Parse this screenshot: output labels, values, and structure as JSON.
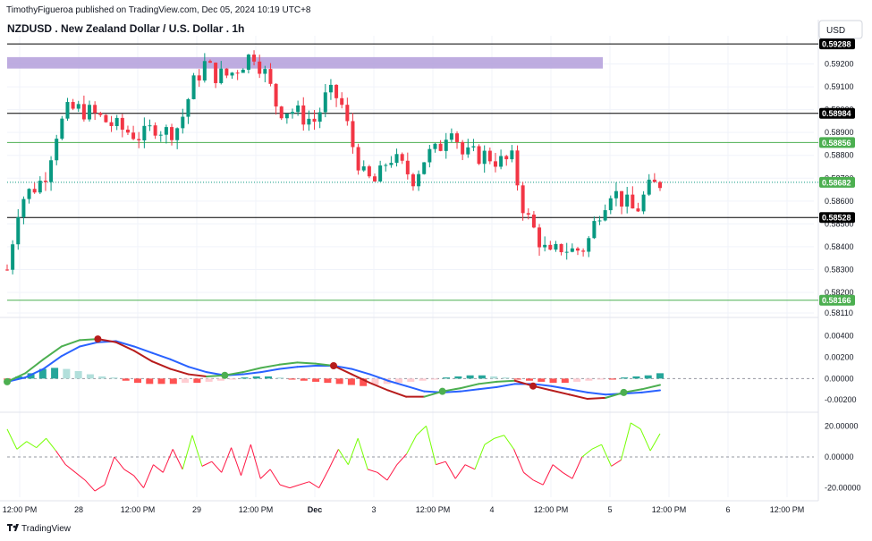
{
  "header": {
    "publisher": "TimothyFigueroa published on TradingView.com, Dec 05, 2024 10:19 UTC+8",
    "symbol_title": "NZDUSD . New Zealand Dollar / U.S. Dollar . 1h",
    "currency": "USD"
  },
  "footer": {
    "brand": "TradingView"
  },
  "colors": {
    "up": "#089981",
    "down": "#f23645",
    "grid": "#f0f3fa",
    "macd_fast": "#4caf50",
    "macd_slow": "#2962ff",
    "macd_slow_down": "#b71c1c",
    "hist_up_strong": "#26a69a",
    "hist_up_weak": "#b2dfdb",
    "hist_down_strong": "#ff5252",
    "hist_down_weak": "#ffcdd2",
    "osc_up": "#76ff03",
    "osc_down": "#ff1744",
    "zone": "#b39ddb",
    "hline_green": "#4caf50",
    "hline_black": "#000000"
  },
  "chart_data": {
    "type": "candlestick",
    "title": "NZDUSD . New Zealand Dollar / U.S. Dollar . 1h",
    "price_axis": {
      "ticks": [
        "0.59200",
        "0.59100",
        "0.59000",
        "0.58900",
        "0.58800",
        "0.58700",
        "0.58600",
        "0.58500",
        "0.58400",
        "0.58300",
        "0.58200",
        "0.58110"
      ],
      "ylim": [
        0.5811,
        0.593
      ]
    },
    "time_axis": {
      "ticks": [
        "12:00 PM",
        "28",
        "12:00 PM",
        "29",
        "12:00 PM",
        "Dec",
        "3",
        "12:00 PM",
        "4",
        "12:00 PM",
        "5",
        "12:00 PM",
        "6",
        "12:00 PM"
      ]
    },
    "price_labels": [
      {
        "text": "0.59288",
        "style": "black"
      },
      {
        "text": "0.58984",
        "style": "black"
      },
      {
        "text": "0.58856",
        "style": "green"
      },
      {
        "text": "0.58682",
        "style": "green"
      },
      {
        "text": "0.58528",
        "style": "black"
      },
      {
        "text": "0.58166",
        "style": "green"
      }
    ],
    "horizontal_lines": [
      {
        "price": 0.59288,
        "color": "black"
      },
      {
        "price": 0.58984,
        "color": "black"
      },
      {
        "price": 0.58856,
        "color": "green"
      },
      {
        "price": 0.58528,
        "color": "black"
      },
      {
        "price": 0.58166,
        "color": "green"
      }
    ],
    "last_price_line": 0.58682,
    "supply_zone": {
      "from": 0.5918,
      "to": 0.5923
    },
    "close_path": [
      0.583,
      0.586,
      0.5865,
      0.587,
      0.589,
      0.59,
      0.59,
      0.5898,
      0.5895,
      0.5892,
      0.589,
      0.5888,
      0.5893,
      0.589,
      0.5893,
      0.591,
      0.592,
      0.5915,
      0.5915,
      0.592,
      0.5925,
      0.5915,
      0.59,
      0.59,
      0.5897,
      0.5895,
      0.5907,
      0.5905,
      0.5885,
      0.587,
      0.5868,
      0.588,
      0.5875,
      0.587,
      0.588,
      0.5882,
      0.5895,
      0.588,
      0.588,
      0.588,
      0.5877,
      0.5878,
      0.5855,
      0.5845,
      0.5835,
      0.584,
      0.5838,
      0.584,
      0.5855,
      0.5865,
      0.586,
      0.5855,
      0.5865,
      0.5868
    ],
    "macd_panel": {
      "ticks": [
        "0.00400",
        "0.00200",
        "0.00000",
        "-0.00200"
      ],
      "ylim": [
        -0.0029,
        0.0053
      ],
      "fast": [
        -0.0003,
        0.0005,
        0.0018,
        0.003,
        0.0036,
        0.0037,
        0.0034,
        0.0026,
        0.0016,
        0.0009,
        0.0004,
        0.0002,
        0.0003,
        0.0006,
        0.001,
        0.0013,
        0.0015,
        0.0014,
        0.0012,
        0.0004,
        -0.0004,
        -0.0011,
        -0.0017,
        -0.0017,
        -0.0012,
        -0.0009,
        -0.0005,
        -0.0003,
        -0.0002,
        -0.0007,
        -0.0011,
        -0.0015,
        -0.0019,
        -0.0018,
        -0.0013,
        -0.001,
        -0.0006
      ],
      "slow": [
        -0.0003,
        0.0001,
        0.0009,
        0.0021,
        0.003,
        0.0034,
        0.0035,
        0.003,
        0.0024,
        0.0018,
        0.0011,
        0.0006,
        0.0003,
        0.0004,
        0.0006,
        0.0009,
        0.0011,
        0.0012,
        0.0012,
        0.0009,
        0.0004,
        -0.0002,
        -0.0007,
        -0.0012,
        -0.0013,
        -0.0012,
        -0.001,
        -0.0008,
        -0.0005,
        -0.0005,
        -0.0007,
        -0.001,
        -0.0013,
        -0.0015,
        -0.0014,
        -0.0013,
        -0.0011
      ],
      "cross_points": [
        {
          "i": 0,
          "kind": "up"
        },
        {
          "i": 5,
          "kind": "down"
        },
        {
          "i": 12,
          "kind": "up"
        },
        {
          "i": 18,
          "kind": "down"
        },
        {
          "i": 24,
          "kind": "up"
        },
        {
          "i": 29,
          "kind": "down"
        },
        {
          "i": 34,
          "kind": "up"
        }
      ],
      "histogram": [
        -0.0001,
        0.0002,
        0.0005,
        0.0009,
        0.001,
        0.0009,
        0.0007,
        0.0004,
        0.0002,
        0.0001,
        -0.0002,
        -0.0004,
        -0.0005,
        -0.0005,
        -0.0005,
        -0.0004,
        -0.0004,
        -0.0003,
        -0.0002,
        -0.0001,
        0.0001,
        0.0002,
        0.0002,
        0.0001,
        -0.0001,
        -0.0002,
        -0.0003,
        -0.0004,
        -0.0005,
        -0.0006,
        -0.0007,
        -0.0006,
        -0.0005,
        -0.0004,
        -0.0003,
        -0.0002,
        -0.0001,
        0.0001,
        0.0002,
        0.0003,
        0.0003,
        0.0002,
        0.0001,
        -0.0001,
        -0.0002,
        -0.0003,
        -0.0004,
        -0.0004,
        -0.0003,
        -0.0002,
        -0.0001,
        -0.0001,
        0.0001,
        0.0002,
        0.0003,
        0.0005
      ]
    },
    "oscillator_panel": {
      "ticks": [
        "20.00000",
        "0.00000",
        "-20.00000"
      ],
      "ylim": [
        -26,
        26
      ],
      "zero_line": 0,
      "values": [
        18,
        5,
        10,
        6,
        12,
        4,
        -5,
        -10,
        -15,
        -22,
        -18,
        0,
        -8,
        -12,
        -20,
        -5,
        -10,
        5,
        -8,
        14,
        -6,
        -3,
        -10,
        6,
        -12,
        8,
        -14,
        -8,
        -18,
        -20,
        -18,
        -16,
        -20,
        -8,
        5,
        -5,
        12,
        -8,
        -10,
        -15,
        -5,
        2,
        14,
        20,
        -5,
        -3,
        -14,
        -5,
        -8,
        8,
        12,
        14,
        5,
        -10,
        -15,
        -18,
        -5,
        -10,
        -14,
        0,
        5,
        8,
        -6,
        -2,
        22,
        18,
        4,
        15
      ],
      "threshold": 0
    }
  }
}
